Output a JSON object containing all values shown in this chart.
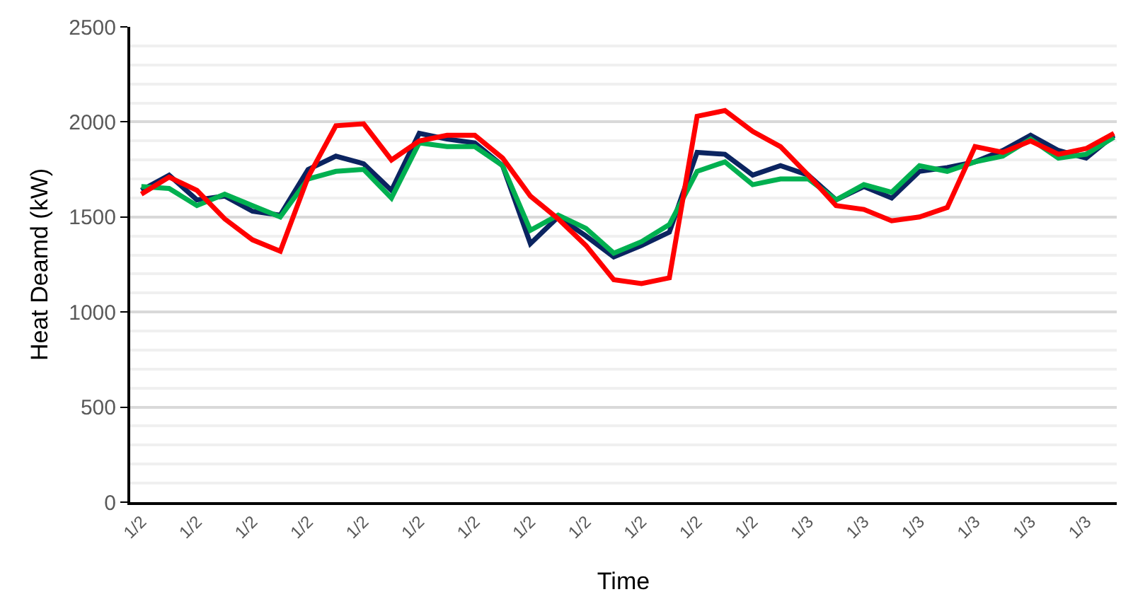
{
  "chart_data": {
    "type": "line",
    "xlabel": "Time",
    "ylabel": "Heat Deamd (kW)",
    "categories": [
      "1/2",
      null,
      "1/2",
      null,
      "1/2",
      null,
      "1/2",
      null,
      "1/2",
      null,
      "1/2",
      null,
      "1/2",
      null,
      "1/2",
      null,
      "1/2",
      null,
      "1/2",
      null,
      "1/2",
      null,
      "1/2",
      null,
      "1/3",
      null,
      "1/3",
      null,
      "1/3",
      null,
      "1/3",
      null,
      "1/3",
      null,
      "1/3",
      null
    ],
    "series": [
      {
        "color": "#0b2460",
        "values": [
          1640,
          1720,
          1590,
          1610,
          1530,
          1510,
          1750,
          1820,
          1780,
          1640,
          1940,
          1910,
          1890,
          1770,
          1360,
          1500,
          1400,
          1290,
          1350,
          1420,
          1840,
          1830,
          1720,
          1770,
          1720,
          1590,
          1660,
          1600,
          1740,
          1760,
          1790,
          1850,
          1930,
          1850,
          1810,
          1930
        ]
      },
      {
        "color": "#00b050",
        "values": [
          1660,
          1650,
          1560,
          1620,
          1560,
          1500,
          1700,
          1740,
          1750,
          1600,
          1890,
          1870,
          1870,
          1770,
          1430,
          1510,
          1440,
          1310,
          1370,
          1460,
          1740,
          1790,
          1670,
          1700,
          1700,
          1590,
          1670,
          1630,
          1770,
          1740,
          1790,
          1820,
          1910,
          1810,
          1830,
          1920
        ]
      },
      {
        "color": "#ff0000",
        "values": [
          1620,
          1710,
          1640,
          1490,
          1380,
          1320,
          1710,
          1980,
          1990,
          1800,
          1900,
          1930,
          1930,
          1810,
          1610,
          1490,
          1350,
          1170,
          1150,
          1180,
          2030,
          2060,
          1950,
          1870,
          1720,
          1560,
          1540,
          1480,
          1500,
          1550,
          1870,
          1840,
          1900,
          1830,
          1860,
          1940
        ]
      }
    ],
    "ylim": [
      0,
      2500
    ],
    "yticks": [
      0,
      500,
      1000,
      1500,
      2000,
      2500
    ],
    "grid": "y",
    "marker": "none",
    "line_style": "solid"
  }
}
